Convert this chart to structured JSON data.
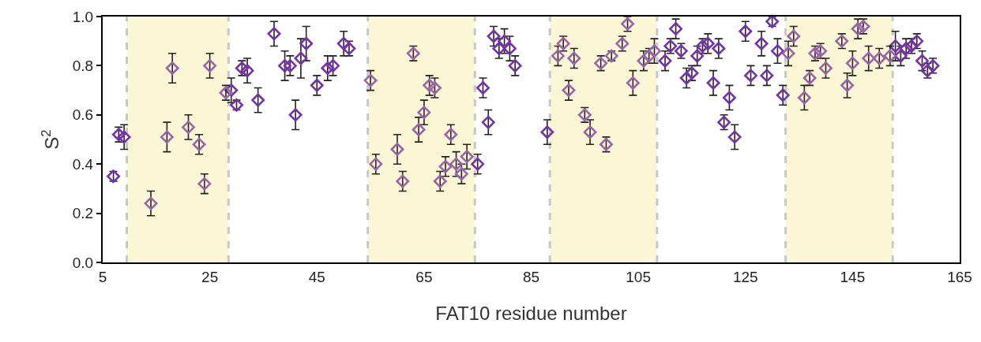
{
  "chart_data": {
    "type": "scatter",
    "xlabel": "FAT10 residue number",
    "ylabel": "S$^{2}$",
    "xlim": [
      5,
      165
    ],
    "xticks": [
      5,
      25,
      45,
      65,
      85,
      105,
      125,
      145,
      165
    ],
    "ylim": [
      0,
      1
    ],
    "yticks": [
      {
        "value": 0,
        "label": "0.0"
      },
      0.2,
      0.4,
      0.6,
      0.8,
      {
        "value": 1,
        "label": "1.0"
      }
    ],
    "grid": false,
    "marker": "diamond",
    "bands": [
      {
        "axis": "x",
        "from": 9.5,
        "to": 28.5,
        "color": "#fbf7d6"
      },
      {
        "axis": "x",
        "from": 54.5,
        "to": 74.5,
        "color": "#fbf7d6"
      },
      {
        "axis": "x",
        "from": 88.5,
        "to": 108.5,
        "color": "#fbf7d6"
      },
      {
        "axis": "x",
        "from": 132.5,
        "to": 152.5,
        "color": "#fbf7d6"
      }
    ],
    "series": [
      {
        "color": "#7532a2",
        "x": [
          7,
          8,
          9,
          29,
          30,
          31,
          32,
          34,
          37,
          39,
          40,
          41,
          42,
          43,
          45,
          47,
          48,
          50,
          51,
          75,
          76,
          77,
          78,
          79,
          80,
          81,
          82,
          88,
          110,
          111,
          112,
          113,
          114,
          115,
          116,
          117,
          118,
          119,
          120,
          121,
          122,
          123,
          125,
          126,
          128,
          129,
          130,
          131,
          132,
          153,
          154,
          155,
          156,
          157,
          158,
          159,
          160
        ],
        "values": [
          0.35,
          0.52,
          0.51,
          0.7,
          0.64,
          0.79,
          0.78,
          0.66,
          0.93,
          0.8,
          0.8,
          0.6,
          0.83,
          0.89,
          0.72,
          0.79,
          0.8,
          0.89,
          0.87,
          0.4,
          0.71,
          0.57,
          0.92,
          0.87,
          0.9,
          0.87,
          0.8,
          0.53,
          0.82,
          0.88,
          0.95,
          0.86,
          0.75,
          0.77,
          0.84,
          0.88,
          0.89,
          0.73,
          0.87,
          0.57,
          0.67,
          0.51,
          0.94,
          0.76,
          0.89,
          0.76,
          0.98,
          0.86,
          0.68,
          0.88,
          0.84,
          0.87,
          0.88,
          0.9,
          0.82,
          0.78,
          0.8
        ],
        "errors": [
          0.02,
          0.03,
          0.05,
          0.05,
          0.02,
          0.03,
          0.05,
          0.05,
          0.05,
          0.06,
          0.04,
          0.06,
          0.08,
          0.07,
          0.04,
          0.05,
          0.04,
          0.05,
          0.03,
          0.04,
          0.04,
          0.05,
          0.04,
          0.04,
          0.05,
          0.05,
          0.04,
          0.05,
          0.04,
          0.03,
          0.04,
          0.03,
          0.04,
          0.03,
          0.04,
          0.03,
          0.04,
          0.05,
          0.04,
          0.03,
          0.05,
          0.05,
          0.04,
          0.04,
          0.05,
          0.04,
          0.02,
          0.05,
          0.04,
          0.06,
          0.04,
          0.04,
          0.03,
          0.03,
          0.04,
          0.03,
          0.03
        ]
      },
      {
        "color": "#9a65a8",
        "x": [
          14,
          17,
          18,
          21,
          23,
          24,
          25,
          28,
          55,
          56,
          60,
          61,
          63,
          64,
          65,
          66,
          67,
          68,
          69,
          70,
          71,
          72,
          73,
          90,
          91,
          92,
          93,
          95,
          96,
          98,
          99,
          100,
          102,
          103,
          104,
          106,
          107,
          108,
          133,
          134,
          136,
          137,
          138,
          139,
          140,
          143,
          144,
          145,
          146,
          147,
          148,
          150,
          152
        ],
        "values": [
          0.24,
          0.51,
          0.79,
          0.55,
          0.48,
          0.32,
          0.8,
          0.69,
          0.74,
          0.4,
          0.46,
          0.33,
          0.85,
          0.54,
          0.61,
          0.72,
          0.71,
          0.33,
          0.39,
          0.52,
          0.4,
          0.36,
          0.43,
          0.84,
          0.89,
          0.7,
          0.83,
          0.6,
          0.53,
          0.81,
          0.48,
          0.84,
          0.89,
          0.97,
          0.73,
          0.82,
          0.84,
          0.86,
          0.85,
          0.92,
          0.67,
          0.75,
          0.85,
          0.86,
          0.79,
          0.9,
          0.72,
          0.81,
          0.95,
          0.96,
          0.83,
          0.83,
          0.84
        ],
        "errors": [
          0.05,
          0.06,
          0.06,
          0.05,
          0.04,
          0.04,
          0.05,
          0.03,
          0.04,
          0.04,
          0.06,
          0.04,
          0.03,
          0.05,
          0.05,
          0.04,
          0.04,
          0.04,
          0.04,
          0.04,
          0.05,
          0.04,
          0.05,
          0.04,
          0.03,
          0.04,
          0.04,
          0.03,
          0.05,
          0.03,
          0.03,
          0.02,
          0.03,
          0.03,
          0.05,
          0.04,
          0.03,
          0.05,
          0.05,
          0.04,
          0.05,
          0.03,
          0.03,
          0.03,
          0.04,
          0.03,
          0.05,
          0.05,
          0.04,
          0.03,
          0.05,
          0.04,
          0.04
        ]
      }
    ]
  }
}
